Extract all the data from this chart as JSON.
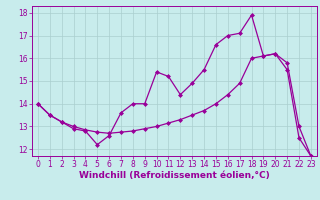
{
  "xlabel": "Windchill (Refroidissement éolien,°C)",
  "background_color": "#c8ecec",
  "line_color": "#990099",
  "x": [
    0,
    1,
    2,
    3,
    4,
    5,
    6,
    7,
    8,
    9,
    10,
    11,
    12,
    13,
    14,
    15,
    16,
    17,
    18,
    19,
    20,
    21,
    22,
    23
  ],
  "y_upper": [
    14.0,
    13.5,
    13.2,
    12.9,
    12.8,
    12.2,
    12.6,
    13.6,
    14.0,
    14.0,
    15.4,
    15.2,
    14.4,
    14.9,
    15.5,
    16.6,
    17.0,
    17.1,
    17.9,
    16.1,
    16.2,
    15.5,
    12.5,
    11.7
  ],
  "y_lower": [
    14.0,
    13.5,
    13.2,
    13.0,
    12.85,
    12.75,
    12.7,
    12.75,
    12.8,
    12.9,
    13.0,
    13.15,
    13.3,
    13.5,
    13.7,
    14.0,
    14.4,
    14.9,
    16.0,
    16.1,
    16.2,
    15.8,
    13.0,
    11.7
  ],
  "ylim": [
    11.7,
    18.3
  ],
  "xlim": [
    -0.5,
    23.5
  ],
  "yticks": [
    12,
    13,
    14,
    15,
    16,
    17,
    18
  ],
  "xticks": [
    0,
    1,
    2,
    3,
    4,
    5,
    6,
    7,
    8,
    9,
    10,
    11,
    12,
    13,
    14,
    15,
    16,
    17,
    18,
    19,
    20,
    21,
    22,
    23
  ],
  "grid_color": "#aacfcf",
  "marker": "D",
  "marker_size": 2.0,
  "line_width": 0.9,
  "label_fontsize": 6.5,
  "tick_fontsize": 5.5,
  "xlabel_color": "#990099",
  "spine_color": "#990099"
}
